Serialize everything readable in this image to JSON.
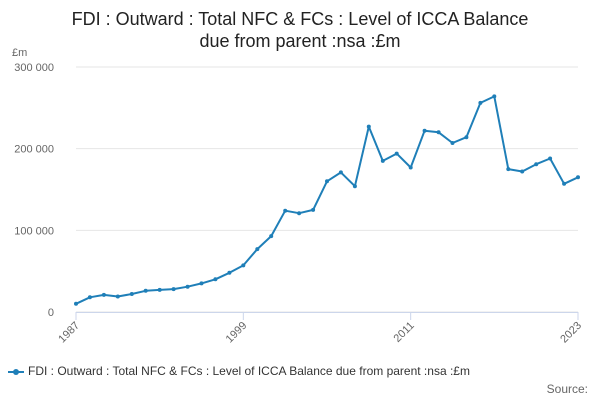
{
  "title_lines": [
    "FDI : Outward : Total NFC & FCs : Level of ICCA Balance",
    "due from parent :nsa :£m"
  ],
  "source_label": "Source:",
  "colors": {
    "series": "#1f7fb8",
    "grid": "#e6e6e6",
    "axis_text": "#666666"
  },
  "chart_data": {
    "type": "line",
    "title": "FDI : Outward : Total NFC & FCs : Level of ICCA Balance due from parent :nsa :£m",
    "ylabel": "£m",
    "xlabel": "",
    "ylim": [
      0,
      300000
    ],
    "yticks": [
      0,
      100000,
      200000,
      300000
    ],
    "ytick_labels": [
      "0",
      "100 000",
      "200 000",
      "300 000"
    ],
    "xlim": [
      1987,
      2023
    ],
    "xticks": [
      1987,
      1999,
      2011,
      2023
    ],
    "xtick_labels": [
      "1987",
      "1999",
      "2011",
      "2023"
    ],
    "grid": true,
    "legend_position": "bottom",
    "series": [
      {
        "name": "FDI : Outward : Total NFC & FCs : Level of ICCA Balance due from parent :nsa :£m",
        "x": [
          1987,
          1988,
          1989,
          1990,
          1991,
          1992,
          1993,
          1994,
          1995,
          1996,
          1997,
          1998,
          1999,
          2000,
          2001,
          2002,
          2003,
          2004,
          2005,
          2006,
          2007,
          2008,
          2009,
          2010,
          2011,
          2012,
          2013,
          2014,
          2015,
          2016,
          2017,
          2018,
          2019,
          2020,
          2021,
          2022,
          2023
        ],
        "values": [
          10000,
          18000,
          21000,
          19000,
          22000,
          26000,
          27000,
          28000,
          31000,
          35000,
          40000,
          48000,
          57000,
          77000,
          93000,
          124000,
          121000,
          125000,
          160000,
          171000,
          154000,
          227000,
          185000,
          194000,
          177000,
          222000,
          220000,
          207000,
          214000,
          256000,
          264000,
          175000,
          172000,
          181000,
          188000,
          157000,
          165000
        ]
      }
    ]
  }
}
